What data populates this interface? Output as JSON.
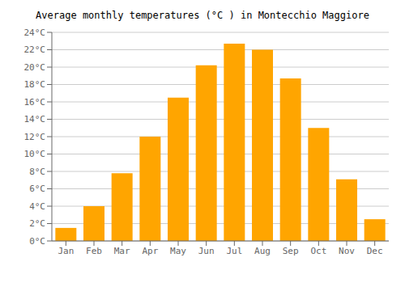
{
  "chart_data": {
    "type": "bar",
    "title": "Average monthly temperatures (°C ) in Montecchio Maggiore",
    "categories": [
      "Jan",
      "Feb",
      "Mar",
      "Apr",
      "May",
      "Jun",
      "Jul",
      "Aug",
      "Sep",
      "Oct",
      "Nov",
      "Dec"
    ],
    "values": [
      1.5,
      4.0,
      7.8,
      12.0,
      16.5,
      20.2,
      22.7,
      22.0,
      18.7,
      13.0,
      7.1,
      2.5
    ],
    "color": "#FFA500",
    "ylim": [
      0,
      24
    ],
    "yticks": [
      {
        "value": 0,
        "label": "0°C"
      },
      {
        "value": 2,
        "label": "2°C"
      },
      {
        "value": 4,
        "label": "4°C"
      },
      {
        "value": 6,
        "label": "6°C"
      },
      {
        "value": 8,
        "label": "8°C"
      },
      {
        "value": 10,
        "label": "10°C"
      },
      {
        "value": 12,
        "label": "12°C"
      },
      {
        "value": 14,
        "label": "14°C"
      },
      {
        "value": 16,
        "label": "16°C"
      },
      {
        "value": 18,
        "label": "18°C"
      },
      {
        "value": 20,
        "label": "20°C"
      },
      {
        "value": 22,
        "label": "22°C"
      },
      {
        "value": 24,
        "label": "24°C"
      }
    ],
    "grid": true
  }
}
